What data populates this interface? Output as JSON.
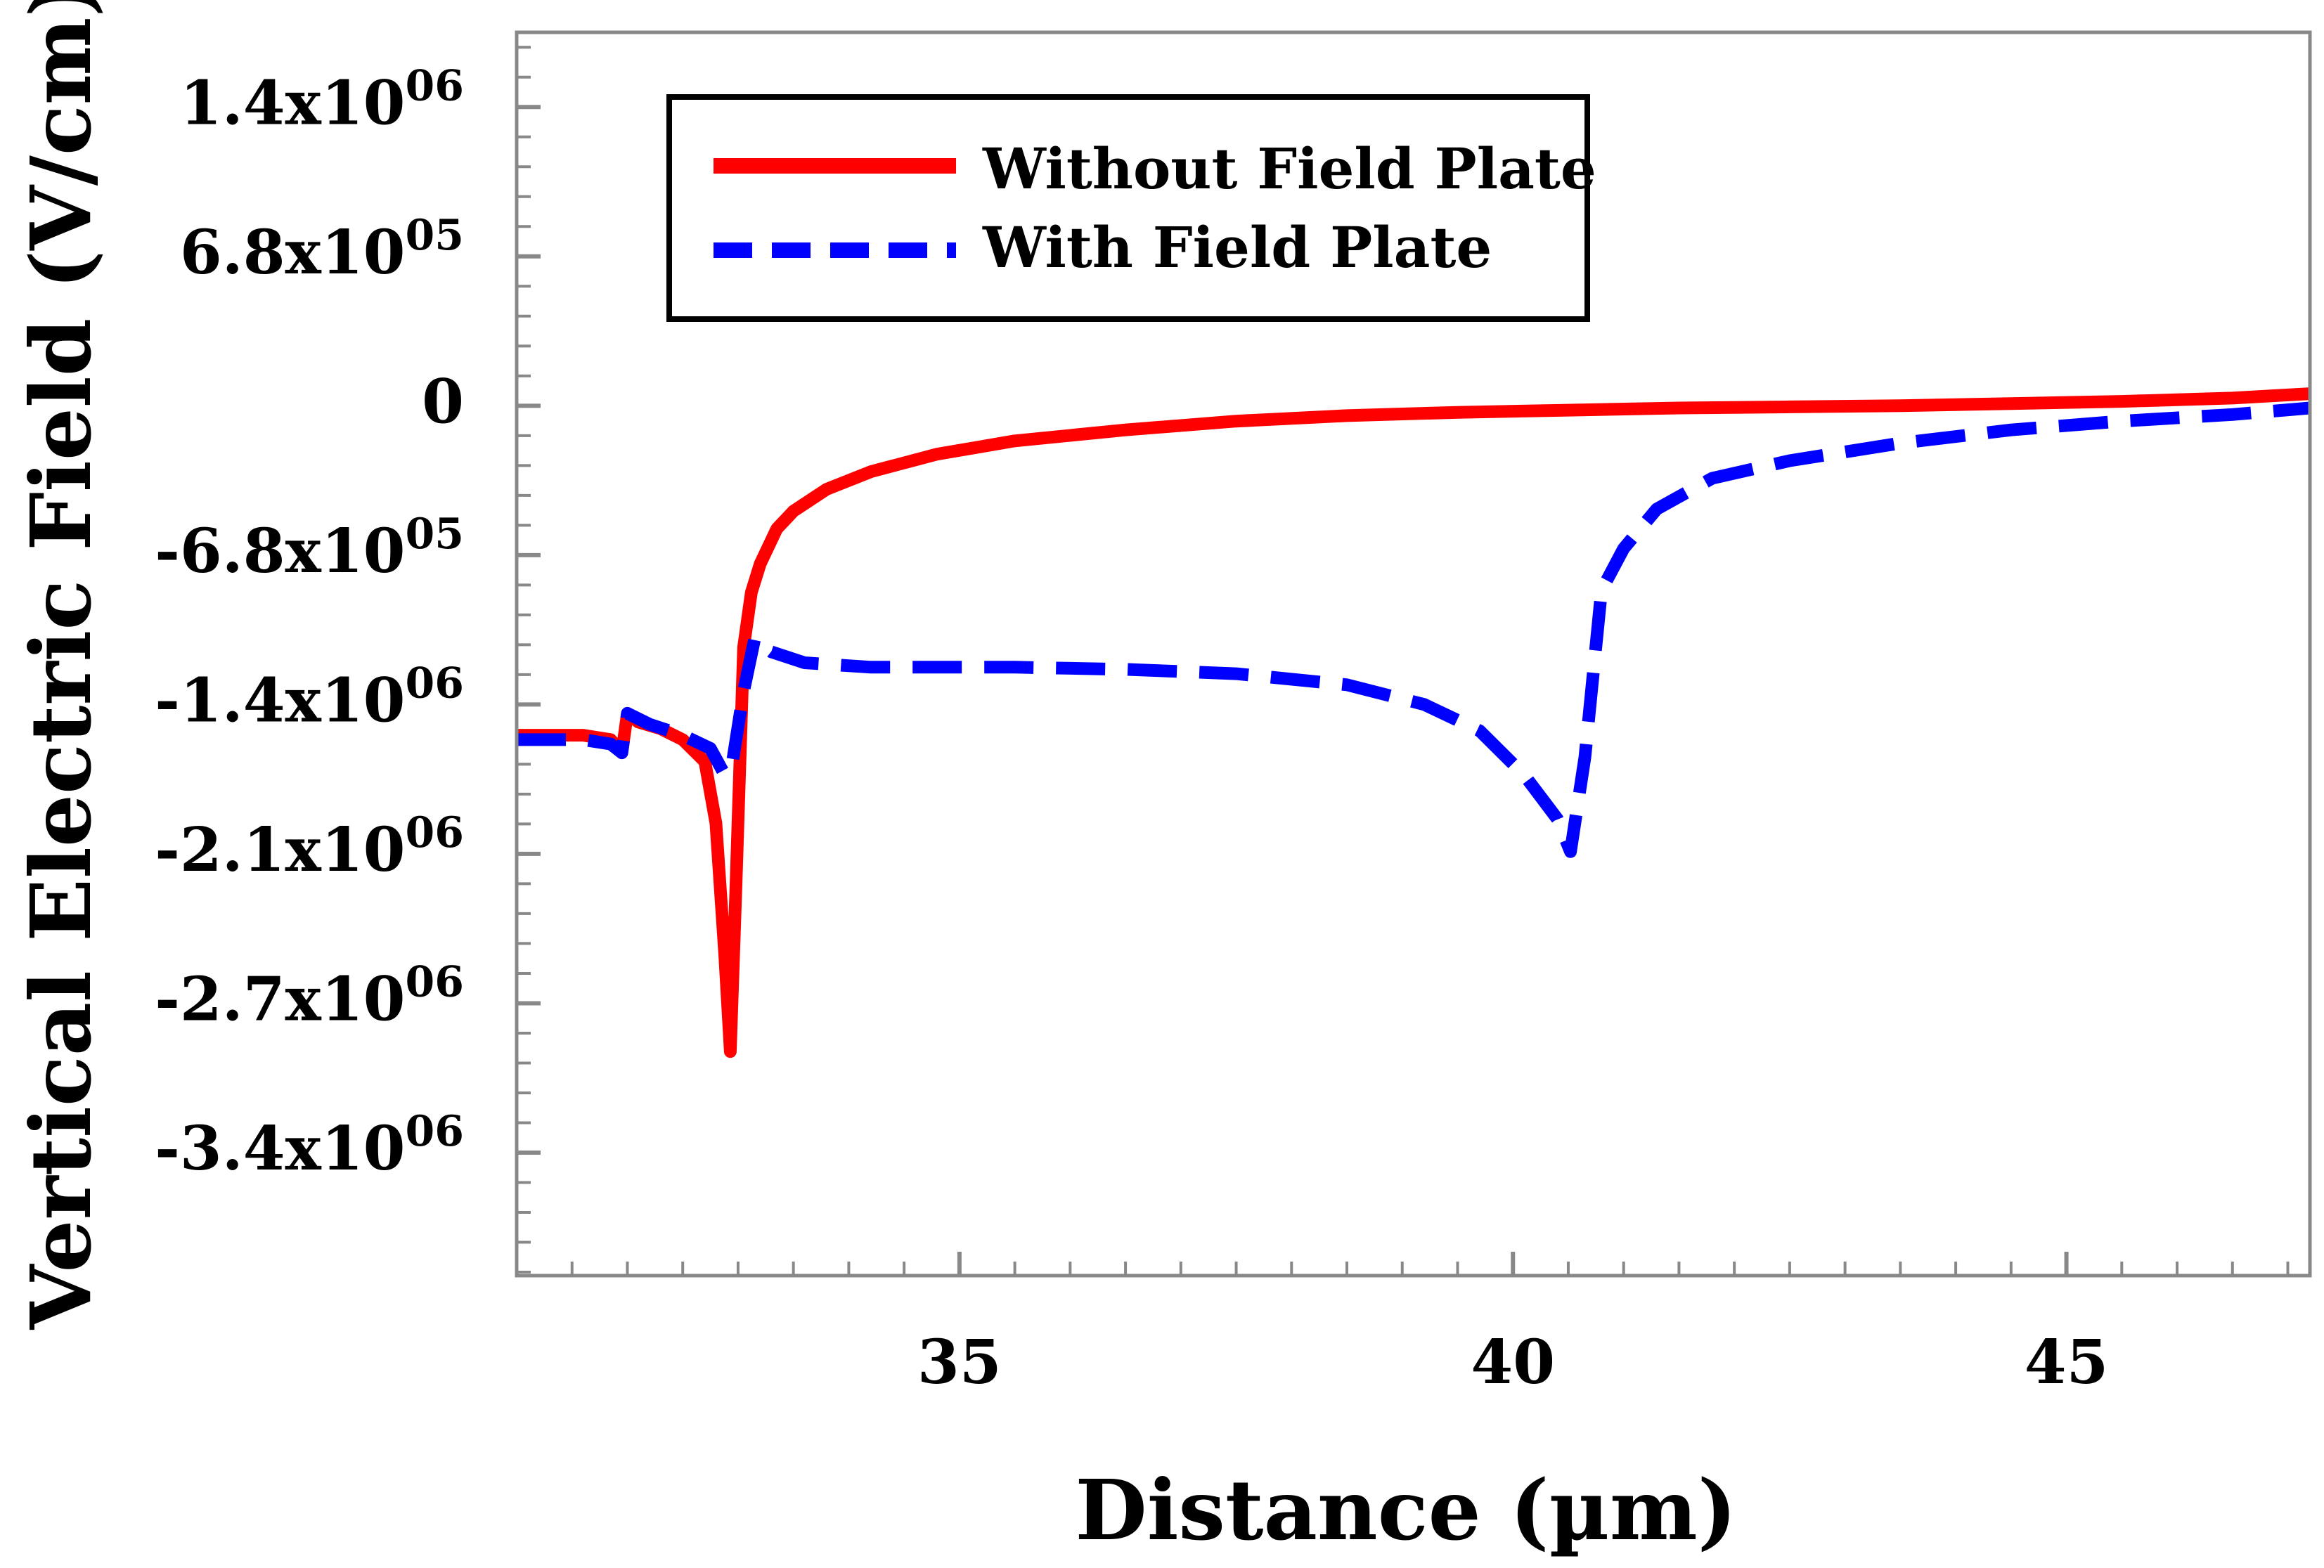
{
  "chart_data": {
    "type": "line",
    "title": "",
    "xlabel": "Distance (µm)",
    "ylabel": "Vertical Electric Field (V/cm)",
    "xlim": [
      31,
      47.2
    ],
    "ylim": [
      -3960000.0,
      1700000.0
    ],
    "x_ticks": [
      {
        "value": 35,
        "label": "35"
      },
      {
        "value": 40,
        "label": "40"
      },
      {
        "value": 45,
        "label": "45"
      }
    ],
    "y_ticks": [
      {
        "value": 1360000.0,
        "mantissa": "1.4x10",
        "exponent": "06"
      },
      {
        "value": 680000.0,
        "mantissa": "6.8x10",
        "exponent": "05"
      },
      {
        "value": 0,
        "mantissa": "0",
        "exponent": ""
      },
      {
        "value": -680000.0,
        "mantissa": "-6.8x10",
        "exponent": "05"
      },
      {
        "value": -1360000.0,
        "mantissa": "-1.4x10",
        "exponent": "06"
      },
      {
        "value": -2040000.0,
        "mantissa": "-2.1x10",
        "exponent": "06"
      },
      {
        "value": -2720000.0,
        "mantissa": "-2.7x10",
        "exponent": "06"
      },
      {
        "value": -3400000.0,
        "mantissa": "-3.4x10",
        "exponent": "06"
      }
    ],
    "legend_position": "top-left",
    "series": [
      {
        "name": "Without Field Plate",
        "color": "#ff0000",
        "dash": "solid",
        "points": [
          [
            31.0,
            -1500000.0
          ],
          [
            31.6,
            -1500000.0
          ],
          [
            31.85,
            -1520000.0
          ],
          [
            31.95,
            -1580000.0
          ],
          [
            32.0,
            -1400000.0
          ],
          [
            32.1,
            -1440000.0
          ],
          [
            32.3,
            -1470000.0
          ],
          [
            32.5,
            -1520000.0
          ],
          [
            32.7,
            -1620000.0
          ],
          [
            32.8,
            -1900000.0
          ],
          [
            32.88,
            -2500000.0
          ],
          [
            32.93,
            -2940000.0
          ],
          [
            32.98,
            -2200000.0
          ],
          [
            33.05,
            -1100000.0
          ],
          [
            33.12,
            -850000.0
          ],
          [
            33.2,
            -720000.0
          ],
          [
            33.35,
            -560000.0
          ],
          [
            33.5,
            -480000.0
          ],
          [
            33.8,
            -380000.0
          ],
          [
            34.2,
            -300000.0
          ],
          [
            34.8,
            -220000.0
          ],
          [
            35.5,
            -160000.0
          ],
          [
            36.5,
            -110000.0
          ],
          [
            37.5,
            -70000.0
          ],
          [
            38.5,
            -45000.0
          ],
          [
            39.5,
            -30000.0
          ],
          [
            40.5,
            -20000.0
          ],
          [
            41.5,
            -10000.0
          ],
          [
            42.5,
            -5000.0
          ],
          [
            43.5,
            0.0
          ],
          [
            44.5,
            10000.0
          ],
          [
            45.5,
            20000.0
          ],
          [
            46.5,
            35000.0
          ],
          [
            47.2,
            55000.0
          ]
        ]
      },
      {
        "name": "With Field Plate",
        "color": "#0000ff",
        "dash": "dashed",
        "points": [
          [
            31.0,
            -1520000.0
          ],
          [
            31.6,
            -1520000.0
          ],
          [
            31.85,
            -1540000.0
          ],
          [
            31.95,
            -1580000.0
          ],
          [
            32.0,
            -1400000.0
          ],
          [
            32.2,
            -1450000.0
          ],
          [
            32.5,
            -1500000.0
          ],
          [
            32.75,
            -1560000.0
          ],
          [
            32.88,
            -1680000.0
          ],
          [
            32.95,
            -1620000.0
          ],
          [
            33.05,
            -1300000.0
          ],
          [
            33.15,
            -1060000.0
          ],
          [
            33.3,
            -1120000.0
          ],
          [
            33.6,
            -1170000.0
          ],
          [
            34.2,
            -1190000.0
          ],
          [
            35.5,
            -1190000.0
          ],
          [
            36.5,
            -1200000.0
          ],
          [
            37.5,
            -1220000.0
          ],
          [
            38.5,
            -1270000.0
          ],
          [
            39.2,
            -1360000.0
          ],
          [
            39.7,
            -1480000.0
          ],
          [
            40.1,
            -1680000.0
          ],
          [
            40.4,
            -1880000.0
          ],
          [
            40.52,
            -2030000.0
          ],
          [
            40.65,
            -1600000.0
          ],
          [
            40.8,
            -840000.0
          ],
          [
            41.0,
            -650000.0
          ],
          [
            41.3,
            -470000.0
          ],
          [
            41.8,
            -330000.0
          ],
          [
            42.5,
            -250000.0
          ],
          [
            43.5,
            -170000.0
          ],
          [
            44.5,
            -110000.0
          ],
          [
            45.5,
            -70000.0
          ],
          [
            46.5,
            -40000.0
          ],
          [
            47.2,
            -10000.0
          ]
        ]
      }
    ]
  }
}
